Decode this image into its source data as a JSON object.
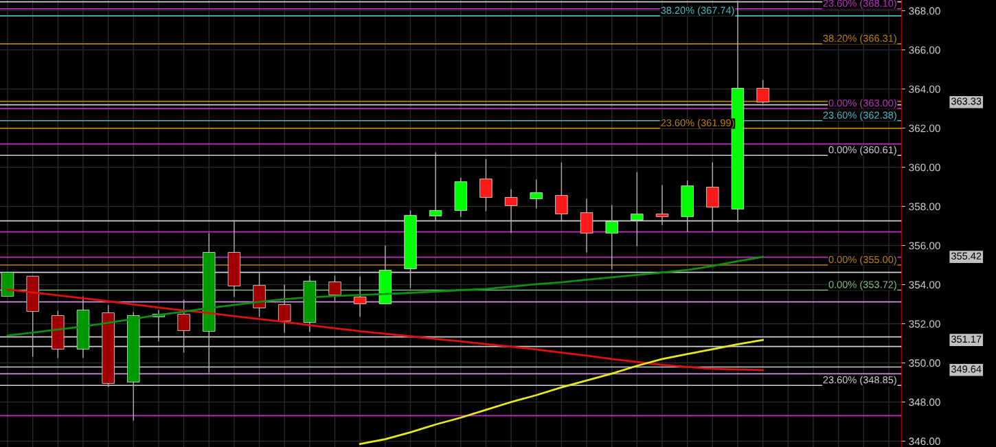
{
  "chart_data": {
    "type": "candlestick",
    "categories": [
      null,
      null,
      null,
      null,
      null,
      null,
      null,
      null,
      null,
      null,
      null,
      null,
      null,
      null,
      null,
      null,
      null,
      null,
      null,
      null,
      null,
      null,
      null,
      null,
      null,
      null,
      null,
      null,
      null,
      null,
      null,
      null,
      null,
      null,
      null,
      null
    ],
    "ohlc": [
      [
        353.4,
        354.63,
        353.4,
        354.63
      ],
      [
        354.43,
        354.45,
        350.32,
        352.63
      ],
      [
        352.42,
        352.67,
        350.25,
        350.7
      ],
      [
        350.7,
        353.4,
        350.25,
        352.7
      ],
      [
        352.56,
        352.95,
        348.77,
        348.95
      ],
      [
        349.02,
        352.6,
        347.05,
        352.42
      ],
      [
        352.35,
        352.7,
        351.1,
        352.49
      ],
      [
        352.49,
        353.23,
        350.53,
        351.65
      ],
      [
        351.61,
        356.63,
        349.5,
        355.65
      ],
      [
        355.65,
        357.23,
        353.37,
        353.93
      ],
      [
        353.96,
        354.6,
        352.35,
        352.81
      ],
      [
        352.98,
        354.0,
        351.54,
        352.14
      ],
      [
        352.07,
        354.46,
        351.58,
        354.18
      ],
      [
        354.14,
        354.46,
        353.16,
        353.47
      ],
      [
        353.37,
        354.42,
        352.35,
        353.02
      ],
      [
        353.02,
        356.0,
        353.02,
        354.74
      ],
      [
        354.81,
        357.79,
        353.82,
        357.54
      ],
      [
        357.51,
        360.77,
        357.26,
        357.79
      ],
      [
        357.79,
        359.47,
        357.47,
        359.26
      ],
      [
        359.4,
        360.42,
        357.75,
        358.46
      ],
      [
        358.46,
        358.88,
        356.63,
        358.04
      ],
      [
        358.39,
        359.37,
        357.9,
        358.7
      ],
      [
        358.56,
        360.25,
        357.23,
        357.61
      ],
      [
        357.68,
        358.39,
        355.65,
        356.63
      ],
      [
        356.63,
        358.07,
        354.77,
        357.23
      ],
      [
        357.3,
        359.75,
        355.96,
        357.61
      ],
      [
        357.61,
        359.09,
        357.05,
        357.47
      ],
      [
        357.47,
        359.33,
        356.7,
        359.05
      ],
      [
        358.98,
        360.25,
        356.7,
        357.96
      ],
      [
        357.86,
        368.5,
        357.19,
        364.04
      ],
      [
        364.04,
        364.46,
        363.26,
        363.33
      ],
      null,
      null,
      null,
      null,
      null
    ],
    "colors": [
      "#009900",
      "#a00000",
      "#a00000",
      "#009900",
      "#a00000",
      "#009900",
      "#009900",
      "#a00000",
      "#009900",
      "#a00000",
      "#a00000",
      "#a00000",
      "#009900",
      "#a00000",
      "#ff1a1a",
      "#00ff00",
      "#00ff00",
      "#00ff00",
      "#00ff00",
      "#ff1a1a",
      "#ff1a1a",
      "#00ff00",
      "#ff1a1a",
      "#ff1a1a",
      "#00ff00",
      "#00ff00",
      "#ff1a1a",
      "#00ff00",
      "#ff1a1a",
      "#00ff00",
      "#ff1a1a",
      null,
      null,
      null,
      null,
      null
    ],
    "series": [
      {
        "type": "line",
        "color": "#e01010",
        "values": [
          353.75,
          353.6,
          353.45,
          353.3,
          353.15,
          352.99,
          352.83,
          352.68,
          352.55,
          352.39,
          352.24,
          352.09,
          351.93,
          351.77,
          351.62,
          351.49,
          351.36,
          351.22,
          351.1,
          350.96,
          350.83,
          350.69,
          350.52,
          350.37,
          350.2,
          350.05,
          349.9,
          349.79,
          349.7,
          349.66,
          349.64,
          null,
          null,
          null,
          null,
          null
        ]
      },
      {
        "type": "line",
        "color": "#109010",
        "values": [
          351.4,
          351.55,
          351.71,
          351.86,
          352.05,
          352.25,
          352.45,
          352.62,
          352.8,
          352.96,
          353.12,
          353.26,
          353.35,
          353.42,
          353.47,
          353.52,
          353.58,
          353.65,
          353.72,
          353.78,
          353.9,
          354.02,
          354.12,
          354.25,
          354.37,
          354.5,
          354.62,
          354.75,
          354.95,
          355.2,
          355.42,
          null,
          null,
          null,
          null,
          null
        ]
      },
      {
        "type": "line",
        "color": "#e8e820",
        "values": [
          null,
          null,
          null,
          null,
          null,
          null,
          null,
          null,
          null,
          null,
          null,
          null,
          null,
          null,
          345.85,
          346.1,
          346.45,
          346.85,
          347.2,
          347.6,
          348.0,
          348.35,
          348.75,
          349.1,
          349.45,
          349.85,
          350.2,
          350.45,
          350.7,
          350.95,
          351.17,
          null,
          null,
          null,
          null,
          null
        ]
      }
    ],
    "ylim": [
      345.7,
      368.55
    ],
    "yticks": [
      {
        "value": 346,
        "label": "346.00"
      },
      {
        "value": 348,
        "label": "348.00"
      },
      {
        "value": 350,
        "label": "350.00"
      },
      {
        "value": 352,
        "label": "352.00"
      },
      {
        "value": 354,
        "label": "354.00"
      },
      {
        "value": 356,
        "label": "356.00"
      },
      {
        "value": 358,
        "label": "358.00"
      },
      {
        "value": 360,
        "label": "360.00"
      },
      {
        "value": 362,
        "label": "362.00"
      },
      {
        "value": 364,
        "label": "364.00"
      },
      {
        "value": 366,
        "label": "366.00"
      },
      {
        "value": 368,
        "label": "368.00"
      }
    ],
    "tick_labels": "y",
    "grid": true,
    "ref_lines": [
      {
        "axis": "y",
        "value": 368.46,
        "color": "#d0d0d0"
      },
      {
        "axis": "y",
        "value": 368.1,
        "label": "23.60% (368.10)",
        "color": "#c030c0"
      },
      {
        "axis": "y",
        "value": 367.74,
        "label": "38.20% (367.74)",
        "color": "#40c0c0"
      },
      {
        "axis": "y",
        "value": 366.31,
        "label": "38.20% (366.31)",
        "color": "#c08000"
      },
      {
        "axis": "y",
        "value": 363.37,
        "color": "#c08000"
      },
      {
        "axis": "y",
        "value": 363.19,
        "color": "#d0d0d0"
      },
      {
        "axis": "y",
        "value": 363.0,
        "label": "0.00% (363.00)",
        "color": "#c030c0"
      },
      {
        "axis": "y",
        "value": 362.38,
        "label": "23.60% (362.38)",
        "color": "#40c0c0"
      },
      {
        "axis": "y",
        "value": 361.99,
        "label": "23.60% (361.99)",
        "color": "#c08000"
      },
      {
        "axis": "y",
        "value": 361.19,
        "color": "#c030c0"
      },
      {
        "axis": "y",
        "value": 360.61,
        "label": "0.00% (360.61)",
        "color": "#d0d0d0"
      },
      {
        "axis": "y",
        "value": 357.26,
        "color": "#d0d0d0"
      },
      {
        "axis": "y",
        "value": 356.7,
        "color": "#c030c0"
      },
      {
        "axis": "y",
        "value": 355.4,
        "color": "#c030c0"
      },
      {
        "axis": "y",
        "value": 355.0,
        "label": "0.00% (355.00)",
        "color": "#c08000"
      },
      {
        "axis": "y",
        "value": 354.63,
        "color": "#d0d0d0"
      },
      {
        "axis": "y",
        "value": 353.72,
        "label": "0.00% (353.72)",
        "color": "#80c080"
      },
      {
        "axis": "y",
        "value": 353.12,
        "color": "#d090e0"
      },
      {
        "axis": "y",
        "value": 351.33,
        "color": "#d0d0d0"
      },
      {
        "axis": "y",
        "value": 350.84,
        "color": "#d0d0d0"
      },
      {
        "axis": "y",
        "value": 349.79,
        "color": "#d0d0d0"
      },
      {
        "axis": "y",
        "value": 349.44,
        "color": "#d090e0"
      },
      {
        "axis": "y",
        "value": 348.85,
        "label": "23.60% (348.85)",
        "color": "#d0d0d0"
      },
      {
        "axis": "y",
        "value": 347.3,
        "color": "#c030c0"
      }
    ],
    "annotations": [
      "363.33",
      "355.42",
      "351.17",
      "349.64"
    ]
  }
}
